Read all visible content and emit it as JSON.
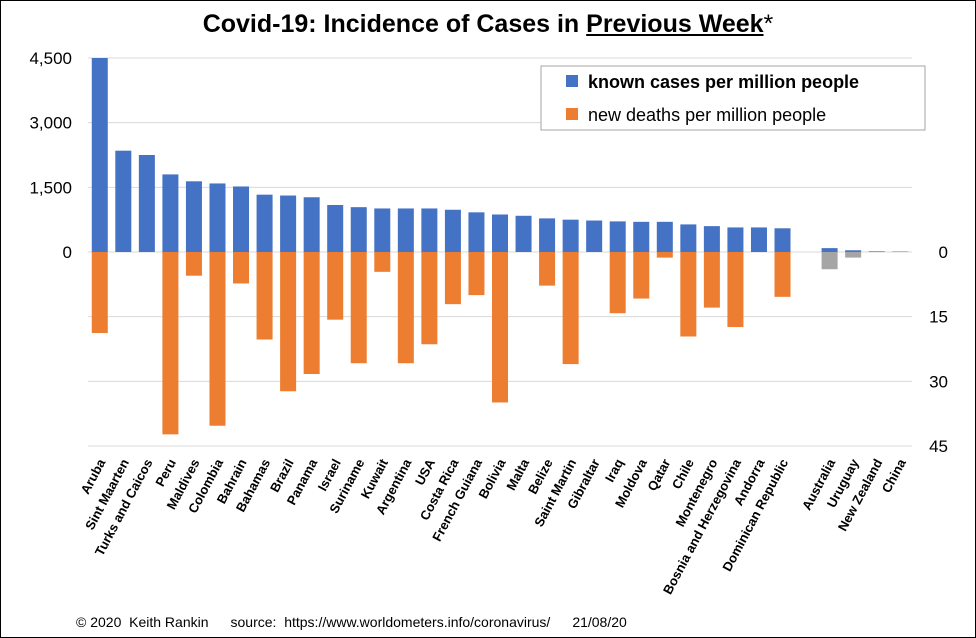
{
  "title": {
    "main": "Covid-19: Incidence of Cases in ",
    "underlined": "Previous Week",
    "suffix": "*"
  },
  "footer": {
    "copyright": "© 2020  Keith Rankin",
    "source": "source:  https://www.worldometers.info/coronavirus/",
    "date": "21/08/20"
  },
  "colors": {
    "cases": "#4472C4",
    "deaths": "#ED7D31",
    "other": "#A5A5A5",
    "grid": "#D9D9D9"
  },
  "chart_data": {
    "type": "bar",
    "title": "Covid-19: Incidence of Cases in Previous Week*",
    "legend_position": "top-right",
    "grid": true,
    "left_axis": {
      "ticks": [
        "4,500",
        "3,000",
        "1,500",
        "0"
      ],
      "values": [
        4500,
        3000,
        1500,
        0
      ],
      "ylim_top": 4500
    },
    "right_axis": {
      "ticks": [
        "0",
        "15",
        "30",
        "45"
      ],
      "values": [
        0,
        15,
        30,
        45
      ],
      "ylim_bottom": 45
    },
    "series": [
      {
        "name": "known cases per million people",
        "axis": "left"
      },
      {
        "name": "new deaths per million people",
        "axis": "right"
      }
    ],
    "categories": [
      "Aruba",
      "Sint Maarten",
      "Turks and Caicos",
      "Peru",
      "Maldives",
      "Colombia",
      "Bahrain",
      "Bahamas",
      "Brazil",
      "Panama",
      "Israel",
      "Suriname",
      "Kuwait",
      "Argentina",
      "USA",
      "Costa Rica",
      "French Guiana",
      "Bolivia",
      "Malta",
      "Belize",
      "Saint Martin",
      "Gibraltar",
      "Iraq",
      "Moldova",
      "Qatar",
      "Chile",
      "Montenegro",
      "Bosnia and Herzegovina",
      "Andorra",
      "Dominican Republic",
      "",
      "Australia",
      "Uruguay",
      "New Zealand",
      "China"
    ],
    "cases": [
      4500,
      2350,
      2250,
      1800,
      1640,
      1590,
      1520,
      1330,
      1310,
      1270,
      1090,
      1040,
      1010,
      1010,
      1010,
      980,
      920,
      870,
      840,
      780,
      750,
      730,
      710,
      700,
      700,
      640,
      600,
      570,
      570,
      550,
      null,
      90,
      40,
      15,
      10
    ],
    "deaths": [
      18.8,
      0,
      0,
      42.3,
      5.5,
      40.3,
      7.3,
      20.3,
      32.3,
      28.3,
      15.7,
      25.8,
      4.6,
      25.8,
      21.4,
      12.1,
      10.0,
      34.9,
      0,
      7.8,
      26.0,
      0,
      14.2,
      10.8,
      1.3,
      19.6,
      12.9,
      17.4,
      0,
      10.4,
      null,
      4.0,
      1.3,
      0,
      0
    ],
    "highlight_grey": [
      "Australia",
      "Uruguay",
      "New Zealand",
      "China"
    ]
  }
}
